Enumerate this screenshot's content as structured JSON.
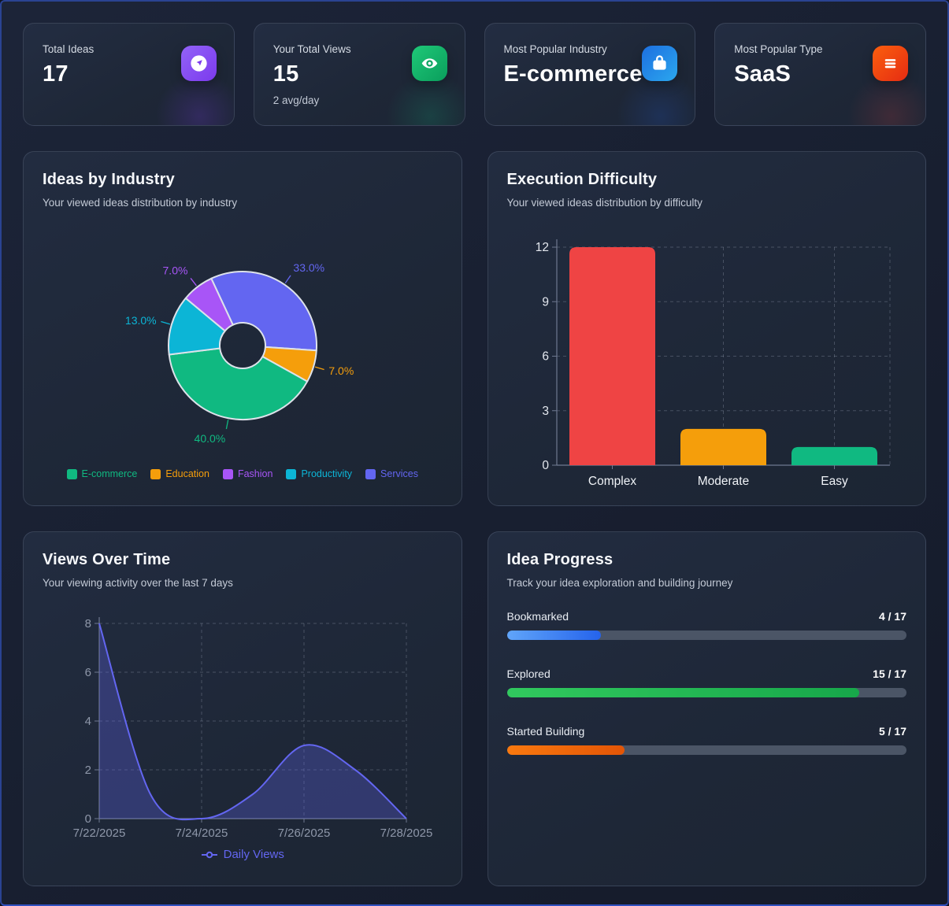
{
  "stat_cards": [
    {
      "label": "Total Ideas",
      "value": "17",
      "sub": "",
      "icon": "idea-compass-icon",
      "tile_colors": [
        "#9263f8",
        "#7c3aed"
      ],
      "glow_color": "rgba(124,58,237,0.22)"
    },
    {
      "label": "Your Total Views",
      "value": "15",
      "sub": "2 avg/day",
      "icon": "eye-icon",
      "tile_colors": [
        "#1fc878",
        "#0a9e5c"
      ],
      "glow_color": "rgba(16,185,129,0.18)"
    },
    {
      "label": "Most Popular Industry",
      "value": "E-commerce",
      "sub": "",
      "icon": "shopping-bag-icon",
      "tile_colors": [
        "#1d6fe0",
        "#2ba7ee"
      ],
      "glow_color": "rgba(37,99,235,0.18)"
    },
    {
      "label": "Most Popular Type",
      "value": "SaaS",
      "sub": "",
      "icon": "list-icon",
      "tile_colors": [
        "#fb5f0e",
        "#e52c12"
      ],
      "glow_color": "rgba(239,68,68,0.16)"
    }
  ],
  "cards": {
    "industry": {
      "title": "Ideas by Industry",
      "subtitle": "Your viewed ideas distribution by industry"
    },
    "difficulty": {
      "title": "Execution Difficulty",
      "subtitle": "Your viewed ideas distribution by difficulty"
    },
    "views": {
      "title": "Views Over Time",
      "subtitle": "Your viewing activity over the last 7 days",
      "legend_label": "Daily Views",
      "legend_color": "#6366f1"
    },
    "progress": {
      "title": "Idea Progress",
      "subtitle": "Track your idea exploration and building journey"
    }
  },
  "chart_data": [
    {
      "id": "ideas_by_industry",
      "type": "pie",
      "title": "Ideas by Industry",
      "donut": true,
      "start_angle_deg_clockwise_from_top": -25,
      "slices_clockwise": [
        {
          "label": "Services",
          "pct": 33.0,
          "color": "#6366f1"
        },
        {
          "label": "Education",
          "pct": 7.0,
          "color": "#f59e0b"
        },
        {
          "label": "E-commerce",
          "pct": 40.0,
          "color": "#10b981"
        },
        {
          "label": "Productivity",
          "pct": 13.0,
          "color": "#0cb5d6"
        },
        {
          "label": "Fashion",
          "pct": 7.0,
          "color": "#a855f7"
        }
      ],
      "legend": [
        {
          "label": "E-commerce",
          "color": "#10b981"
        },
        {
          "label": "Education",
          "color": "#f59e0b"
        },
        {
          "label": "Fashion",
          "color": "#a855f7"
        },
        {
          "label": "Productivity",
          "color": "#0cb5d6"
        },
        {
          "label": "Services",
          "color": "#6366f1"
        }
      ]
    },
    {
      "id": "execution_difficulty",
      "type": "bar",
      "title": "Execution Difficulty",
      "categories": [
        "Complex",
        "Moderate",
        "Easy"
      ],
      "values": [
        12,
        2,
        1
      ],
      "colors": [
        "#ef4444",
        "#f59e0b",
        "#10b981"
      ],
      "ylim": [
        0,
        12
      ],
      "yticks": [
        0,
        3,
        6,
        9,
        12
      ],
      "grid": "dashed"
    },
    {
      "id": "views_over_time",
      "type": "area",
      "title": "Views Over Time",
      "x": [
        "7/22/2025",
        "7/23/2025",
        "7/24/2025",
        "7/25/2025",
        "7/26/2025",
        "7/27/2025",
        "7/28/2025"
      ],
      "values": [
        8,
        1,
        0,
        1,
        3,
        2,
        0
      ],
      "x_tick_labels": [
        "7/22/2025",
        "7/24/2025",
        "7/26/2025",
        "7/28/2025"
      ],
      "ylim": [
        0,
        8
      ],
      "yticks": [
        0,
        2,
        4,
        6,
        8
      ],
      "series_name": "Daily Views",
      "line_color": "#6366f1",
      "fill_color": "rgba(99,102,241,0.30)",
      "grid": "dashed",
      "legend_position": "bottom"
    },
    {
      "id": "idea_progress",
      "type": "table",
      "title": "Idea Progress",
      "rows": [
        {
          "label": "Bookmarked",
          "display": "4 / 17",
          "value": 4,
          "total": 17,
          "colors": [
            "#60a5fa",
            "#2563eb"
          ]
        },
        {
          "label": "Explored",
          "display": "15 / 17",
          "value": 15,
          "total": 17,
          "colors": [
            "#31c95e",
            "#17a74a"
          ]
        },
        {
          "label": "Started Building",
          "display": "5 / 17",
          "value": 5,
          "total": 17,
          "colors": [
            "#f9790f",
            "#e35506"
          ]
        }
      ]
    }
  ]
}
